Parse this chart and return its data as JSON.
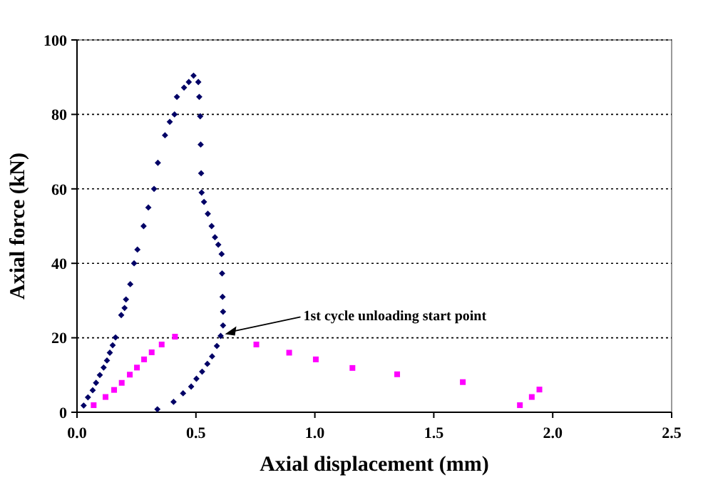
{
  "chart_data": {
    "type": "scatter",
    "xlabel": "Axial displacement (mm)",
    "ylabel": "Axial force (kN)",
    "xlim": [
      0,
      2.5
    ],
    "xticks": [
      {
        "value": 0,
        "label": "0.0"
      },
      {
        "value": 0.5,
        "label": "0.5"
      },
      {
        "value": 1,
        "label": "1.0"
      },
      {
        "value": 1.5,
        "label": "1.5"
      },
      {
        "value": 2,
        "label": "2.0"
      },
      {
        "value": 2.5,
        "label": "2.5"
      }
    ],
    "ylim": [
      0,
      100
    ],
    "yticks": [
      0,
      20,
      40,
      60,
      80,
      100
    ],
    "grid": "y",
    "annotations": [
      {
        "text": "1st cycle unloading start point",
        "x": 0.61,
        "y": 21
      }
    ],
    "series": [
      {
        "color": "#000066",
        "marker": "diamond",
        "x": [
          0.028,
          0.046,
          0.066,
          0.08,
          0.096,
          0.112,
          0.126,
          0.138,
          0.15,
          0.162,
          0.186,
          0.2,
          0.206,
          0.224,
          0.24,
          0.254,
          0.28,
          0.3,
          0.324,
          0.34,
          0.37,
          0.39,
          0.41,
          0.42,
          0.45,
          0.47,
          0.49,
          0.51,
          0.514,
          0.518,
          0.52,
          0.522,
          0.524,
          0.534,
          0.55,
          0.566,
          0.58,
          0.594,
          0.608,
          0.61,
          0.612,
          0.614,
          0.614,
          0.604,
          0.588,
          0.568,
          0.548,
          0.526,
          0.502,
          0.48,
          0.446,
          0.406,
          0.338
        ],
        "values": [
          1.8,
          4,
          5.9,
          7.9,
          10,
          12,
          13.9,
          16,
          18,
          20.1,
          26.1,
          28,
          30.3,
          34.4,
          40,
          43.7,
          50,
          55,
          60,
          67,
          74.4,
          78,
          80,
          84.7,
          87.2,
          88.7,
          90.4,
          88.7,
          84.7,
          79.5,
          71.9,
          64.2,
          59,
          56.5,
          53.3,
          50,
          47,
          45,
          42.5,
          37.3,
          31,
          27,
          23.3,
          20.5,
          17.8,
          15,
          13,
          10.9,
          9,
          6.9,
          5.1,
          2.8,
          0.8
        ]
      },
      {
        "color": "#ff00ff",
        "marker": "square",
        "x": [
          0.07,
          0.12,
          0.156,
          0.188,
          0.222,
          0.252,
          0.282,
          0.314,
          0.356,
          0.412,
          0.754,
          0.892,
          1.004,
          1.158,
          1.346,
          1.622,
          1.862,
          1.912,
          1.944
        ],
        "values": [
          1.9,
          4.1,
          6,
          7.9,
          10.1,
          12,
          14.2,
          16.1,
          18.2,
          20.3,
          18.2,
          16,
          14.2,
          11.9,
          10.2,
          8.1,
          1.9,
          4.1,
          6.1
        ]
      }
    ]
  }
}
